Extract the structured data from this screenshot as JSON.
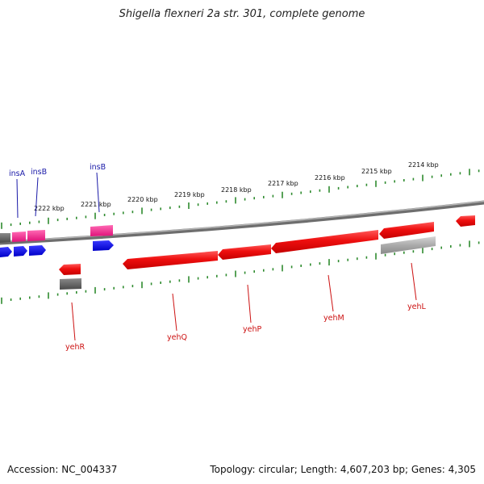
{
  "title": "Shigella flexneri 2a str. 301, complete genome",
  "footer": {
    "accession": "Accession: NC_004337",
    "summary": "Topology: circular; Length: 4,607,203 bp; Genes: 4,305"
  },
  "colors": {
    "background": "#ffffff",
    "backbone": "#888888",
    "tick_track": "#2e8b2e",
    "gene_forward_red": "#ee1111",
    "pseudo_gray": "#9a9a9a",
    "dark_gray": "#666666",
    "insertion_magenta": "#ff1493",
    "insertion_blue": "#1010ee",
    "upper_label_color": "#1a1aa8",
    "lower_label_color": "#cc1111"
  },
  "scale_labels": [
    "2222 kbp",
    "2221 kbp",
    "2220 kbp",
    "2219 kbp",
    "2218 kbp",
    "2217 kbp",
    "2216 kbp",
    "2215 kbp",
    "2214 kbp"
  ],
  "upper_labels": [
    "insA",
    "insB",
    "insB"
  ],
  "lower_labels": [
    "yehR",
    "yehQ",
    "yehP",
    "yehM",
    "yehL"
  ]
}
